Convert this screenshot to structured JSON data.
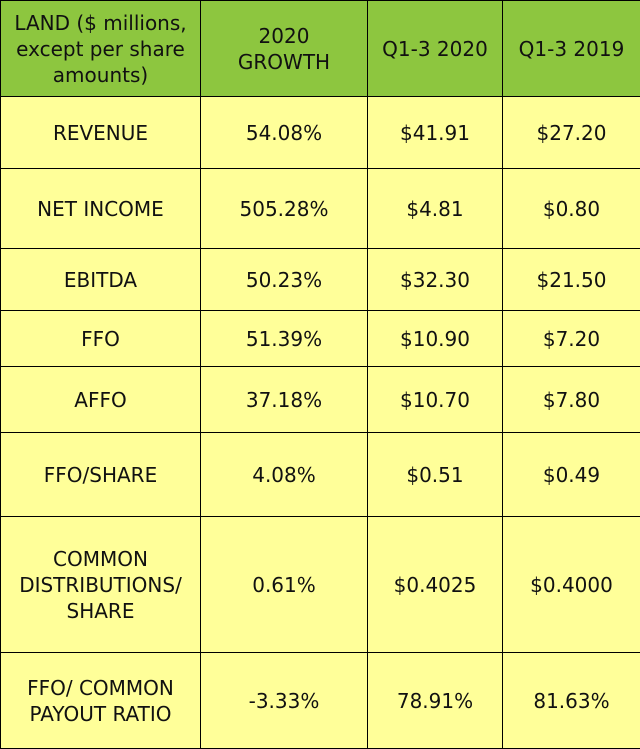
{
  "chart_data": {
    "type": "table",
    "columns": [
      "LAND ($ millions,\nexcept per share\namounts)",
      "2020\nGROWTH",
      "Q1-3 2020",
      "Q1-3 2019"
    ],
    "rows": [
      [
        "REVENUE",
        "54.08%",
        "$41.91",
        "$27.20"
      ],
      [
        "NET INCOME",
        "505.28%",
        "$4.81",
        "$0.80"
      ],
      [
        "EBITDA",
        "50.23%",
        "$32.30",
        "$21.50"
      ],
      [
        "FFO",
        "51.39%",
        "$10.90",
        "$7.20"
      ],
      [
        "AFFO",
        "37.18%",
        "$10.70",
        "$7.80"
      ],
      [
        "FFO/SHARE",
        "4.08%",
        "$0.51",
        "$0.49"
      ],
      [
        "COMMON\nDISTRIBUTIONS/\nSHARE",
        "0.61%",
        "$0.4025",
        "$0.4000"
      ],
      [
        "FFO/ COMMON\nPAYOUT RATIO",
        "-3.33%",
        "78.91%",
        "81.63%"
      ]
    ]
  },
  "colors": {
    "header_background": "#8dc63f",
    "body_background": "#ffff99",
    "border": "#000000"
  }
}
